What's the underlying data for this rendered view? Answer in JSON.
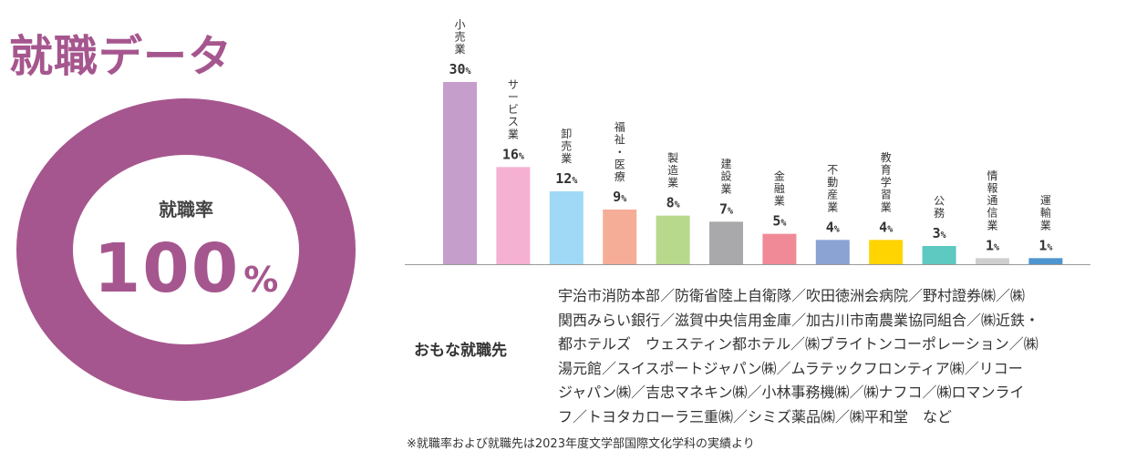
{
  "title": "就職データ",
  "employment_rate": {
    "label": "就職率",
    "value": "100",
    "unit": "%",
    "fraction": 1.0
  },
  "chart_data": {
    "type": "bar",
    "categories": [
      "小売業",
      "サービス業",
      "卸売業",
      "福祉・医療",
      "製造業",
      "建設業",
      "金融業",
      "不動産業",
      "教育学習業",
      "公務",
      "情報通信業",
      "運輸業"
    ],
    "category_label_lines": [
      [
        "小",
        "売",
        "業"
      ],
      [
        "サ",
        "ー",
        "ビ",
        "ス",
        "業"
      ],
      [
        "卸",
        "売",
        "業"
      ],
      [
        "福",
        "祉",
        "・",
        "医",
        "療"
      ],
      [
        "製",
        "造",
        "業"
      ],
      [
        "建",
        "設",
        "業"
      ],
      [
        "金",
        "融",
        "業"
      ],
      [
        "不",
        "動",
        "産",
        "業"
      ],
      [
        "教",
        "育",
        "学",
        "習",
        "業"
      ],
      [
        "公",
        "務"
      ],
      [
        "情",
        "報",
        "通",
        "信",
        "業"
      ],
      [
        "運",
        "輸",
        "業"
      ]
    ],
    "values": [
      30,
      16,
      12,
      9,
      8,
      7,
      5,
      4,
      4,
      3,
      1,
      1
    ],
    "unit": "%",
    "colors": [
      "#c59ecb",
      "#f4b1d2",
      "#9fd9f5",
      "#f6ad97",
      "#b7d98c",
      "#a9a9ab",
      "#f08a97",
      "#8aa3d3",
      "#ffd400",
      "#5ec9c1",
      "#cfcfcf",
      "#4e95d0"
    ],
    "ylim": [
      0,
      30
    ]
  },
  "employers": {
    "heading": "おもな就職先",
    "lines": [
      "宇治市消防本部／防衛省陸上自衛隊／吹田徳洲会病院／野村證券㈱／㈱",
      "関西みらい銀行／滋賀中央信用金庫／加古川市南農業協同組合／㈱近鉄・",
      "都ホテルズ　ウェスティン都ホテル／㈱ブライトンコーポレーション／㈱",
      "湯元館／スイスポートジャパン㈱／ムラテックフロンティア㈱／リコー",
      "ジャパン㈱／吉忠マネキン㈱／小林事務機㈱／㈱ナフコ／㈱ロマンライ",
      "フ／トヨタカローラ三重㈱／シミズ薬品㈱／㈱平和堂　など"
    ]
  },
  "note": "※就職率および就職先は2023年度文学部国際文化学科の実績より"
}
